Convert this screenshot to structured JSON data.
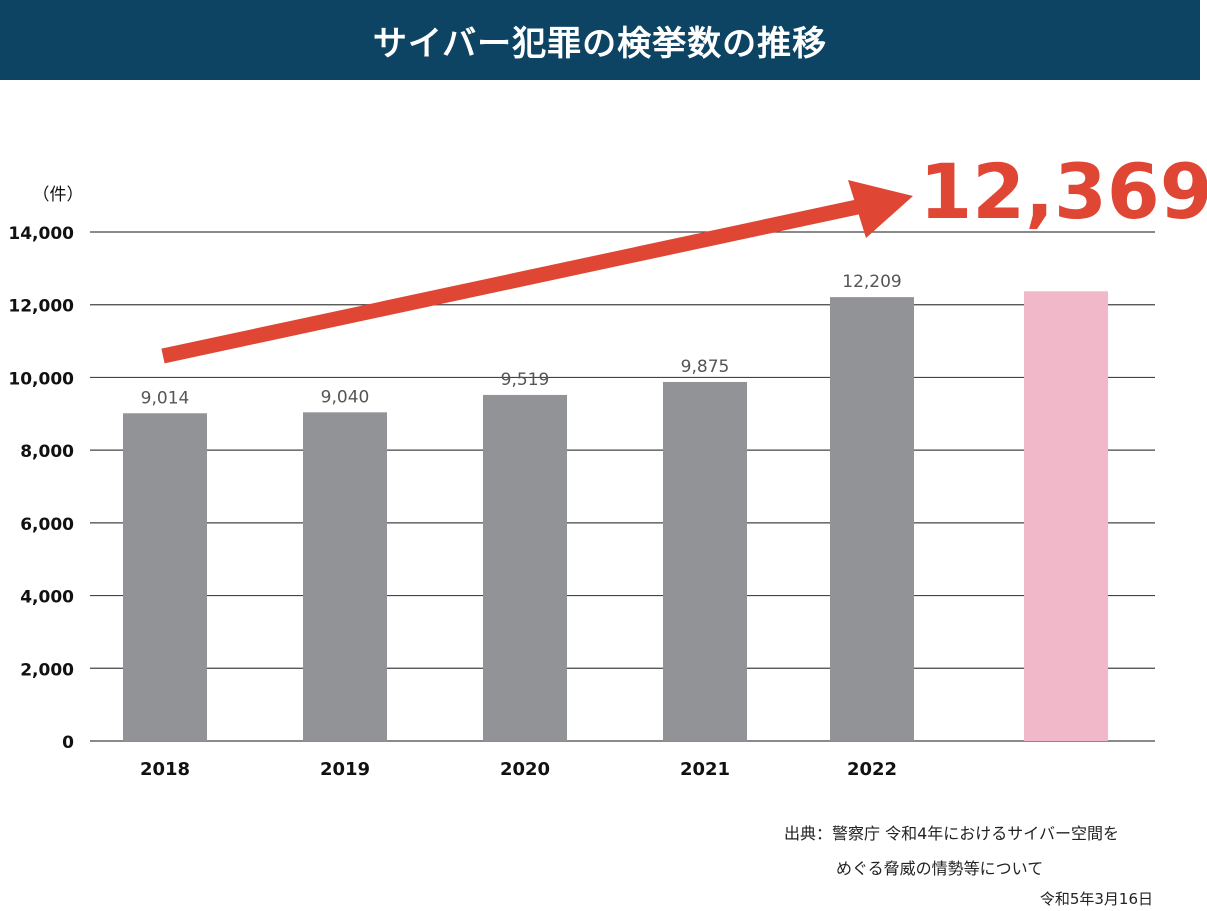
{
  "header": {
    "title": "サイバー犯罪の検挙数の推移"
  },
  "chart_data": {
    "type": "bar",
    "ylabel": "（件）",
    "ylim": [
      0,
      14000
    ],
    "y_ticks": [
      0,
      2000,
      4000,
      6000,
      8000,
      10000,
      12000,
      14000
    ],
    "y_tick_labels": [
      "0",
      "2,000",
      "4,000",
      "6,000",
      "8,000",
      "10,000",
      "12,000",
      "14,000"
    ],
    "grid": true,
    "categories": [
      "2018",
      "2019",
      "2020",
      "2021",
      "2022",
      ""
    ],
    "values": [
      9014,
      9040,
      9519,
      9875,
      12209,
      12369
    ],
    "value_labels": [
      "9,014",
      "9,040",
      "9,519",
      "9,875",
      "12,209",
      ""
    ],
    "highlight_label": "12,369",
    "colors": {
      "bar": "#929396",
      "highlight_bar": "#f0b8c8",
      "arrow": "#df4634",
      "highlight_text": "#df4634",
      "grid": "#444444"
    }
  },
  "source": {
    "line1": "出典：警察庁 令和4年におけるサイバー空間を",
    "line2": "めぐる脅威の情勢等について",
    "date": "令和5年3月16日"
  }
}
